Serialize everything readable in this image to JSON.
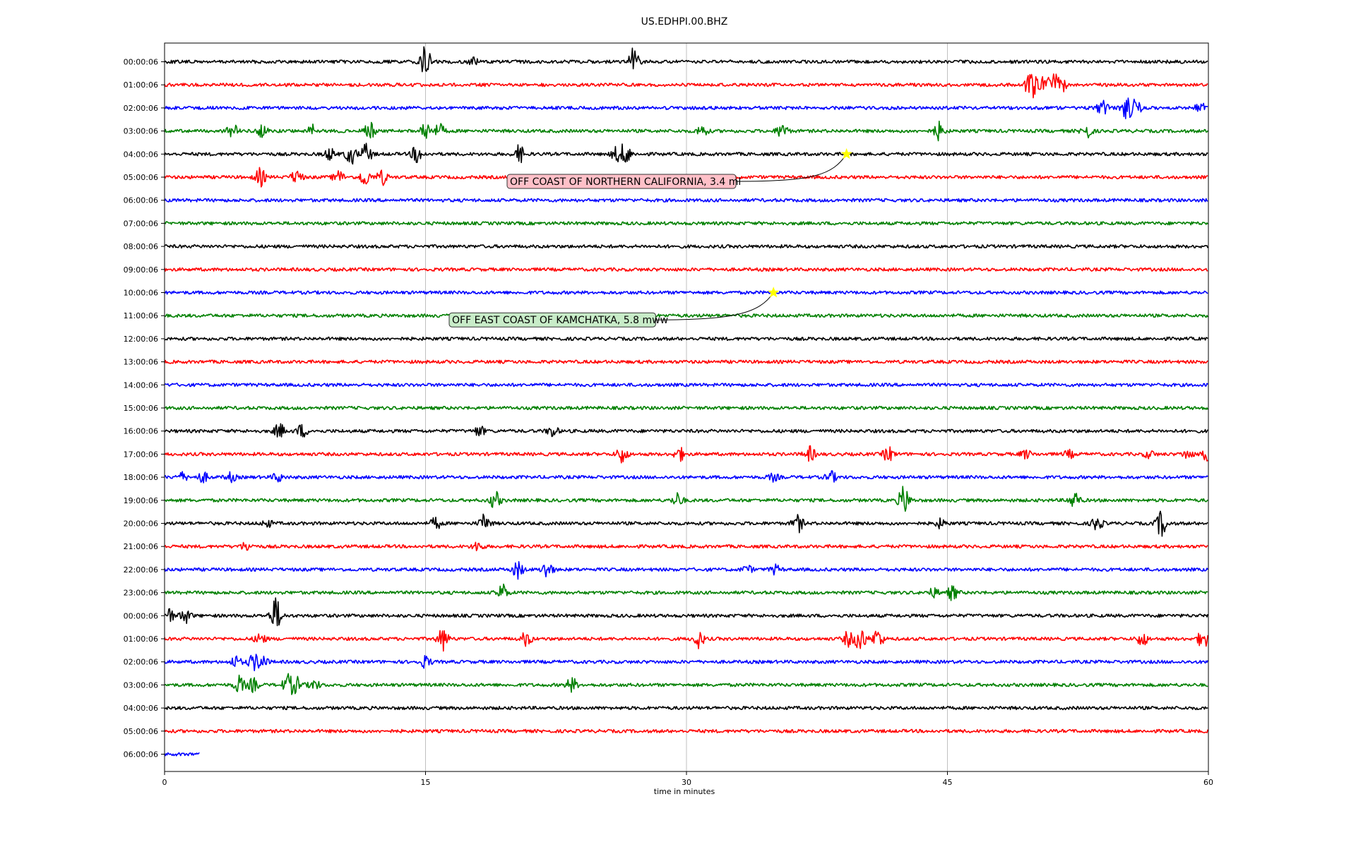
{
  "chart_data": {
    "type": "line",
    "title": "US.EDHPI.00.BHZ",
    "xlabel": "time in minutes",
    "ylabel": "",
    "xlim": [
      0,
      60
    ],
    "x_ticks": [
      0,
      15,
      30,
      45,
      60
    ],
    "grid": "vertical",
    "colors": [
      "#000000",
      "#ff0000",
      "#0000ff",
      "#008000"
    ],
    "annotation_style": {
      "marker": "star",
      "marker_color": "#ffff00",
      "box_colors": [
        "#ffc0c8",
        "#c8ecc8"
      ]
    },
    "rows": [
      {
        "label": "00:00:06",
        "events": [
          [
            15.0,
            22
          ],
          [
            27.0,
            20
          ],
          [
            17.8,
            5
          ]
        ]
      },
      {
        "label": "01:00:06",
        "events": [
          [
            49.8,
            26
          ],
          [
            50.6,
            14
          ],
          [
            51.1,
            12
          ],
          [
            51.5,
            14
          ]
        ]
      },
      {
        "label": "02:00:06",
        "events": [
          [
            53.9,
            10
          ],
          [
            55.3,
            14
          ],
          [
            55.8,
            12
          ],
          [
            59.5,
            8
          ]
        ]
      },
      {
        "label": "03:00:06",
        "events": [
          [
            3.9,
            10
          ],
          [
            5.6,
            8
          ],
          [
            8.5,
            10
          ],
          [
            11.8,
            12
          ],
          [
            15.0,
            12
          ],
          [
            15.8,
            9
          ],
          [
            30.9,
            8
          ],
          [
            35.5,
            11
          ],
          [
            44.5,
            12
          ],
          [
            53.0,
            10
          ]
        ]
      },
      {
        "label": "04:00:06",
        "events": [
          [
            9.5,
            8
          ],
          [
            10.7,
            14
          ],
          [
            11.6,
            14
          ],
          [
            14.5,
            12
          ],
          [
            20.4,
            12
          ],
          [
            26.0,
            10
          ],
          [
            26.5,
            14
          ]
        ]
      },
      {
        "label": "05:00:06",
        "events": [
          [
            5.5,
            12
          ],
          [
            7.6,
            10
          ],
          [
            10.0,
            9
          ],
          [
            11.5,
            12
          ],
          [
            12.5,
            10
          ]
        ]
      },
      {
        "label": "06:00:06",
        "events": []
      },
      {
        "label": "07:00:06",
        "events": []
      },
      {
        "label": "08:00:06",
        "events": []
      },
      {
        "label": "09:00:06",
        "events": []
      },
      {
        "label": "10:00:06",
        "events": []
      },
      {
        "label": "11:00:06",
        "events": []
      },
      {
        "label": "12:00:06",
        "events": []
      },
      {
        "label": "13:00:06",
        "events": []
      },
      {
        "label": "14:00:06",
        "events": []
      },
      {
        "label": "15:00:06",
        "events": []
      },
      {
        "label": "16:00:06",
        "events": [
          [
            6.6,
            10
          ],
          [
            7.9,
            9
          ],
          [
            18.1,
            7
          ],
          [
            22.3,
            8
          ]
        ]
      },
      {
        "label": "17:00:06",
        "events": [
          [
            26.3,
            12
          ],
          [
            29.6,
            9
          ],
          [
            37.1,
            10
          ],
          [
            41.6,
            10
          ],
          [
            49.5,
            6
          ],
          [
            52.0,
            5
          ],
          [
            56.6,
            5
          ],
          [
            58.8,
            6
          ],
          [
            59.9,
            10
          ]
        ]
      },
      {
        "label": "18:00:06",
        "events": [
          [
            1.0,
            6
          ],
          [
            2.2,
            7
          ],
          [
            3.8,
            6
          ],
          [
            6.5,
            6
          ],
          [
            35.0,
            5
          ],
          [
            38.3,
            8
          ]
        ]
      },
      {
        "label": "19:00:06",
        "events": [
          [
            19.0,
            12
          ],
          [
            29.5,
            10
          ],
          [
            42.5,
            20
          ],
          [
            52.3,
            12
          ]
        ]
      },
      {
        "label": "20:00:06",
        "events": [
          [
            5.9,
            5
          ],
          [
            15.6,
            8
          ],
          [
            18.4,
            12
          ],
          [
            36.4,
            12
          ],
          [
            44.6,
            6
          ],
          [
            53.6,
            10
          ],
          [
            57.3,
            18
          ]
        ]
      },
      {
        "label": "21:00:06",
        "events": [
          [
            4.7,
            6
          ],
          [
            18.0,
            7
          ]
        ]
      },
      {
        "label": "22:00:06",
        "events": [
          [
            20.3,
            12
          ],
          [
            22.0,
            12
          ],
          [
            33.5,
            5
          ],
          [
            35.1,
            6
          ]
        ]
      },
      {
        "label": "23:00:06",
        "events": [
          [
            19.4,
            12
          ],
          [
            44.2,
            6
          ],
          [
            45.3,
            10
          ]
        ]
      },
      {
        "label": "00:00:06",
        "events": [
          [
            0.2,
            12
          ],
          [
            1.2,
            10
          ],
          [
            6.4,
            24
          ]
        ]
      },
      {
        "label": "01:00:06",
        "events": [
          [
            5.5,
            8
          ],
          [
            16.0,
            16
          ],
          [
            20.8,
            10
          ],
          [
            30.7,
            12
          ],
          [
            39.3,
            10
          ],
          [
            40.0,
            18
          ],
          [
            41.0,
            14
          ],
          [
            56.2,
            10
          ],
          [
            59.7,
            14
          ]
        ]
      },
      {
        "label": "02:00:06",
        "events": [
          [
            4.1,
            8
          ],
          [
            5.1,
            10
          ],
          [
            5.6,
            10
          ],
          [
            15.0,
            8
          ]
        ]
      },
      {
        "label": "03:00:06",
        "events": [
          [
            4.3,
            12
          ],
          [
            5.1,
            9
          ],
          [
            7.1,
            14
          ],
          [
            7.6,
            10
          ],
          [
            8.6,
            7
          ],
          [
            23.4,
            10
          ]
        ]
      },
      {
        "label": "04:00:06",
        "events": []
      },
      {
        "label": "05:00:06",
        "events": []
      },
      {
        "label": "06:00:06",
        "events": [],
        "end_minute": 2.0
      }
    ],
    "annotations": [
      {
        "text": "OFF COAST OF NORTHERN CALIFORNIA, 3.4 ml",
        "row": 4,
        "minute": 39.2
      },
      {
        "text": "OFF EAST COAST OF KAMCHATKA, 5.8 mww",
        "row": 10,
        "minute": 35.0
      }
    ]
  }
}
